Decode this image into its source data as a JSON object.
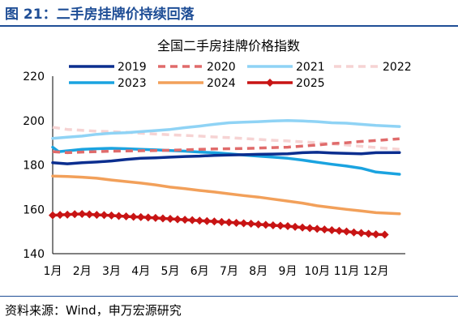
{
  "figure_title": "图 21：二手房挂牌价持续回落",
  "source": "资料来源：Wind，申万宏源研究",
  "colors": {
    "brand": "#1f4e96",
    "s2019": "#0b2e8f",
    "s2020": "#e06b6b",
    "s2021": "#8fd3f5",
    "s2022": "#f6d3d3",
    "s2023": "#1aa3e0",
    "s2024": "#f2a05a",
    "s2025": "#c81414"
  },
  "chart_data": {
    "type": "line",
    "title": "全国二手房挂牌价格指数",
    "xlabel": "",
    "ylabel": "",
    "ylim": [
      140,
      220
    ],
    "yticks": [
      140,
      160,
      180,
      200,
      220
    ],
    "xlim": [
      1,
      13
    ],
    "categories": [
      "1月",
      "2月",
      "3月",
      "4月",
      "5月",
      "6月",
      "7月",
      "8月",
      "9月",
      "10月",
      "11月",
      "12月"
    ],
    "grid": false,
    "legend_position": "top",
    "series": [
      {
        "name": "2019",
        "color_key": "s2019",
        "style": "solid",
        "x": [
          1,
          1.5,
          2,
          2.5,
          3,
          3.5,
          4,
          4.5,
          5,
          5.5,
          6,
          6.5,
          7,
          7.5,
          8,
          8.5,
          9,
          9.5,
          10,
          10.5,
          11,
          11.5,
          12,
          12.8
        ],
        "y": [
          181,
          180.5,
          181,
          181.3,
          181.8,
          182.5,
          183,
          183.2,
          183.5,
          183.8,
          184,
          184.3,
          184.5,
          184.6,
          184.8,
          184.9,
          185,
          185.5,
          185.7,
          185.4,
          185.2,
          185,
          185.5,
          185.6
        ]
      },
      {
        "name": "2020",
        "color_key": "s2020",
        "style": "dashed",
        "x": [
          1,
          1.5,
          2,
          2.5,
          3,
          3.5,
          4,
          4.5,
          5,
          5.5,
          6,
          6.5,
          7,
          7.5,
          8,
          8.5,
          9,
          9.5,
          10,
          10.5,
          11,
          11.5,
          12,
          12.8
        ],
        "y": [
          186,
          185.5,
          185.8,
          186,
          186.2,
          186.3,
          186.4,
          186.5,
          186.6,
          186.8,
          187,
          187.2,
          187.3,
          187.4,
          187.6,
          187.8,
          188,
          188.5,
          189,
          189.6,
          190,
          190.6,
          191,
          191.8
        ]
      },
      {
        "name": "2021",
        "color_key": "s2021",
        "style": "solid",
        "x": [
          1,
          1.5,
          2,
          2.5,
          3,
          3.5,
          4,
          4.5,
          5,
          5.5,
          6,
          6.5,
          7,
          7.5,
          8,
          8.5,
          9,
          9.5,
          10,
          10.5,
          11,
          11.5,
          12,
          12.8
        ],
        "y": [
          192,
          192.5,
          193,
          193.8,
          194.3,
          194.5,
          195,
          195.5,
          196,
          196.8,
          197.5,
          198.3,
          199,
          199.3,
          199.5,
          199.8,
          200,
          199.8,
          199.5,
          199,
          198.8,
          198.3,
          197.8,
          197.3
        ]
      },
      {
        "name": "2022",
        "color_key": "s2022",
        "style": "dashed",
        "x": [
          1,
          1.5,
          2,
          2.5,
          3,
          3.5,
          4,
          4.5,
          5,
          5.5,
          6,
          6.5,
          7,
          7.5,
          8,
          8.5,
          9,
          9.5,
          10,
          10.5,
          11,
          11.5,
          12,
          12.8
        ],
        "y": [
          197,
          196,
          195.6,
          195.2,
          195,
          194.7,
          194.3,
          193.9,
          193.6,
          193.3,
          193,
          192.6,
          192.3,
          191.9,
          191.5,
          191.1,
          190.8,
          190.4,
          190,
          189.5,
          189,
          188.4,
          187.8,
          187
        ]
      },
      {
        "name": "2023",
        "color_key": "s2023",
        "style": "solid",
        "x": [
          1,
          1.2,
          1.6,
          2,
          2.5,
          3,
          3.5,
          4,
          4.5,
          5,
          5.5,
          6,
          6.5,
          7,
          7.5,
          8,
          8.5,
          9,
          9.5,
          10,
          10.5,
          11,
          11.5,
          12,
          12.8
        ],
        "y": [
          188,
          186,
          186.5,
          187,
          187.3,
          187.5,
          187.3,
          187,
          186.8,
          186.5,
          186.2,
          185.8,
          185.5,
          185,
          184.5,
          184,
          183.5,
          183,
          182.2,
          181.2,
          180.3,
          179.5,
          178.5,
          176.8,
          175.8
        ]
      },
      {
        "name": "2024",
        "color_key": "s2024",
        "style": "solid",
        "x": [
          1,
          1.5,
          2,
          2.5,
          3,
          3.5,
          4,
          4.5,
          5,
          5.5,
          6,
          6.5,
          7,
          7.5,
          8,
          8.5,
          9,
          9.5,
          10,
          10.5,
          11,
          11.5,
          12,
          12.8
        ],
        "y": [
          175,
          174.8,
          174.5,
          174,
          173.2,
          172.5,
          171.8,
          171,
          170,
          169.3,
          168.5,
          167.8,
          167,
          166.2,
          165.5,
          164.6,
          163.7,
          162.8,
          161.6,
          160.8,
          160,
          159.3,
          158.5,
          158
        ]
      },
      {
        "name": "2025",
        "color_key": "s2025",
        "style": "marker",
        "x": [
          1,
          1.25,
          1.5,
          1.75,
          2,
          2.25,
          2.5,
          2.75,
          3,
          3.25,
          3.5,
          3.75,
          4,
          4.25,
          4.5,
          4.75,
          5,
          5.25,
          5.5,
          5.75,
          6,
          6.25,
          6.5,
          6.75,
          7,
          7.25,
          7.5,
          7.75,
          8,
          8.25,
          8.5,
          8.75,
          9,
          9.25,
          9.5,
          9.75,
          10,
          10.25,
          10.5,
          10.75,
          11,
          11.25,
          11.5,
          11.75,
          12,
          12.3
        ],
        "y": [
          157.3,
          157.5,
          157.6,
          157.8,
          157.9,
          157.7,
          157.5,
          157.4,
          157.2,
          157,
          156.8,
          156.6,
          156.5,
          156.3,
          156.1,
          155.9,
          155.7,
          155.5,
          155.3,
          155.1,
          154.9,
          154.7,
          154.5,
          154.3,
          154.1,
          153.9,
          153.7,
          153.5,
          153.2,
          153,
          152.8,
          152.6,
          152.4,
          152.1,
          151.8,
          151.5,
          151.2,
          150.9,
          150.6,
          150.3,
          150,
          149.6,
          149.3,
          149,
          148.7,
          148.6
        ]
      }
    ]
  }
}
